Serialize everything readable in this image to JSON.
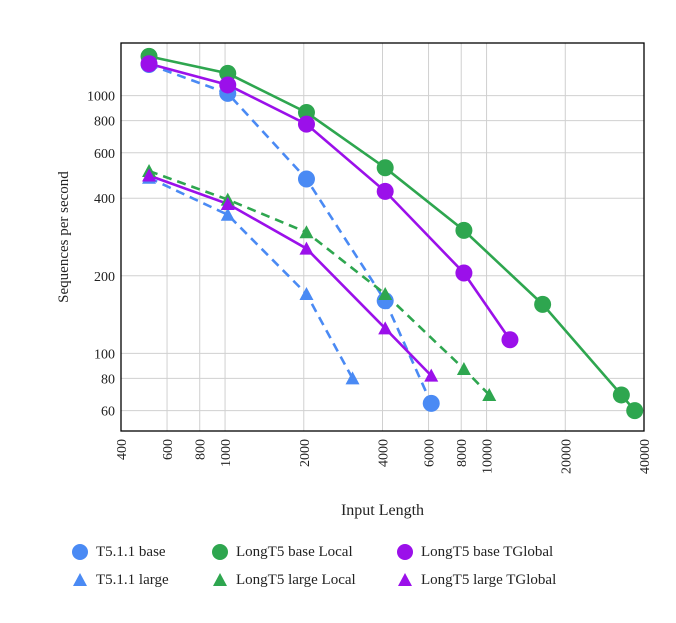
{
  "chart_data": {
    "type": "line",
    "title": "",
    "xlabel": "Input Length",
    "ylabel": "Sequences per second",
    "xscale": "log",
    "yscale": "log",
    "xlim": [
      400,
      40000
    ],
    "ylim": [
      50,
      1600
    ],
    "x_ticks": [
      400,
      600,
      800,
      1000,
      2000,
      4000,
      6000,
      8000,
      10000,
      20000,
      40000
    ],
    "x_tick_labels": [
      "400",
      "600",
      "800",
      "1000",
      "2000",
      "4000",
      "6000",
      "8000",
      "10000",
      "20000",
      "40000"
    ],
    "y_ticks": [
      60,
      80,
      100,
      200,
      400,
      600,
      800,
      1000
    ],
    "y_tick_labels": [
      "60",
      "80",
      "100",
      "200",
      "400",
      "600",
      "800",
      "1000"
    ],
    "grid": true,
    "legend_position": "bottom",
    "series": [
      {
        "name": "T5.1.1 base",
        "color": "#4a8af4",
        "marker": "circle",
        "dash": true,
        "x": [
          512,
          1024,
          2048,
          4096,
          6144
        ],
        "y": [
          1320,
          1020,
          475,
          160,
          64
        ]
      },
      {
        "name": "T5.1.1 large",
        "color": "#4a8af4",
        "marker": "triangle",
        "dash": true,
        "x": [
          512,
          1024,
          2048,
          3072
        ],
        "y": [
          480,
          345,
          170,
          80
        ]
      },
      {
        "name": "LongT5 base Local",
        "color": "#2ea64f",
        "marker": "circle",
        "dash": false,
        "x": [
          512,
          1024,
          2048,
          4096,
          8192,
          16384,
          32768,
          36864
        ],
        "y": [
          1420,
          1220,
          860,
          525,
          300,
          155,
          69,
          60
        ]
      },
      {
        "name": "LongT5 large Local",
        "color": "#2ea64f",
        "marker": "triangle",
        "dash": true,
        "x": [
          512,
          1024,
          2048,
          4096,
          8192,
          10240
        ],
        "y": [
          510,
          395,
          295,
          170,
          87,
          69
        ]
      },
      {
        "name": "LongT5 base TGlobal",
        "color": "#9b10ea",
        "marker": "circle",
        "dash": false,
        "x": [
          512,
          1024,
          2048,
          4096,
          8192,
          12288
        ],
        "y": [
          1330,
          1100,
          775,
          425,
          205,
          113
        ]
      },
      {
        "name": "LongT5 large TGlobal",
        "color": "#9b10ea",
        "marker": "triangle",
        "dash": false,
        "x": [
          512,
          1024,
          2048,
          4096,
          6144
        ],
        "y": [
          490,
          380,
          255,
          125,
          82
        ]
      }
    ]
  },
  "legend": {
    "rows": [
      [
        {
          "label": "T5.1.1 base",
          "color": "#4a8af4",
          "marker": "circle"
        },
        {
          "label": "LongT5 base Local",
          "color": "#2ea64f",
          "marker": "circle"
        },
        {
          "label": "LongT5 base TGlobal",
          "color": "#9b10ea",
          "marker": "circle"
        }
      ],
      [
        {
          "label": "T5.1.1 large",
          "color": "#4a8af4",
          "marker": "triangle"
        },
        {
          "label": "LongT5 large Local",
          "color": "#2ea64f",
          "marker": "triangle"
        },
        {
          "label": "LongT5 large TGlobal",
          "color": "#9b10ea",
          "marker": "triangle"
        }
      ]
    ]
  }
}
